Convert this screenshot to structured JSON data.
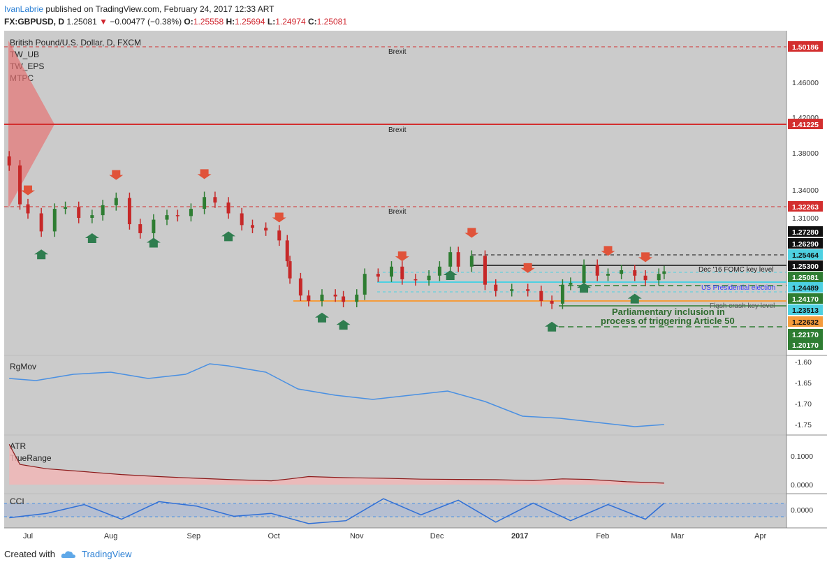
{
  "header": {
    "author": "IvanLabrie",
    "published_text": "published on TradingView.com, February 24, 2017 12:33 ART",
    "symbol_line": "FX:GBPUSD, D",
    "last": "1.25081",
    "change_arrow": "▼",
    "change": "−0.00477 (−0.38%)",
    "o_label": "O:",
    "o_value": "1.25558",
    "h_label": "H:",
    "h_value": "1.25694",
    "l_label": "L:",
    "l_value": "1.24974",
    "c_label": "C:",
    "c_value": "1.25081"
  },
  "main_pane": {
    "title": "British Pound/U.S. Dollar, D, FXCM",
    "indicators": [
      "TW_UB",
      "TW_EPS",
      "MTPC"
    ]
  },
  "footer": {
    "created_with": "Created with",
    "brand": "TradingView"
  },
  "colors": {
    "pane_bg": "#cbcbcb",
    "up": "#2e7d32",
    "down": "#c62828",
    "support_arrow": "#2f7d4f",
    "resistance_arrow": "#e0533a",
    "brexit_line": "#d32f2f",
    "cyan_line": "#4dd0e1",
    "orange_line": "#f59c3c",
    "indicator_line": "#4a90e2",
    "atr_line": "#8b1a1a"
  },
  "chart_data": [
    {
      "type": "line",
      "title": "British Pound/U.S. Dollar, D, FXCM",
      "x_ticks": [
        "Jul",
        "Aug",
        "Sep",
        "Oct",
        "Nov",
        "Dec",
        "2017",
        "Feb",
        "Mar",
        "Apr"
      ],
      "y_ticks": [
        "1.46000",
        "1.42000",
        "1.38000",
        "1.34000",
        "1.31000"
      ],
      "y_range": [
        1.193,
        1.508
      ],
      "series": [
        {
          "name": "GBPUSD close (approx.)",
          "x": [
            "2016-06-24",
            "2016-06-28",
            "2016-07-01",
            "2016-07-06",
            "2016-07-11",
            "2016-07-15",
            "2016-07-20",
            "2016-07-25",
            "2016-07-29",
            "2016-08-03",
            "2016-08-08",
            "2016-08-12",
            "2016-08-17",
            "2016-08-22",
            "2016-08-26",
            "2016-08-31",
            "2016-09-05",
            "2016-09-09",
            "2016-09-14",
            "2016-09-19",
            "2016-09-23",
            "2016-09-28",
            "2016-10-03",
            "2016-10-06",
            "2016-10-07",
            "2016-10-11",
            "2016-10-14",
            "2016-10-19",
            "2016-10-24",
            "2016-10-27",
            "2016-11-01",
            "2016-11-04",
            "2016-11-09",
            "2016-11-14",
            "2016-11-18",
            "2016-11-23",
            "2016-11-28",
            "2016-12-02",
            "2016-12-06",
            "2016-12-09",
            "2016-12-14",
            "2016-12-19",
            "2016-12-23",
            "2016-12-29",
            "2017-01-04",
            "2017-01-09",
            "2017-01-13",
            "2017-01-17",
            "2017-01-20",
            "2017-01-25",
            "2017-01-30",
            "2017-02-03",
            "2017-02-08",
            "2017-02-13",
            "2017-02-17",
            "2017-02-22",
            "2017-02-24"
          ],
          "values": [
            1.368,
            1.325,
            1.315,
            1.295,
            1.32,
            1.322,
            1.31,
            1.313,
            1.324,
            1.332,
            1.303,
            1.293,
            1.308,
            1.313,
            1.312,
            1.32,
            1.333,
            1.327,
            1.315,
            1.302,
            1.299,
            1.296,
            1.285,
            1.262,
            1.243,
            1.224,
            1.218,
            1.225,
            1.223,
            1.217,
            1.225,
            1.248,
            1.245,
            1.256,
            1.242,
            1.241,
            1.246,
            1.256,
            1.272,
            1.256,
            1.268,
            1.236,
            1.229,
            1.231,
            1.229,
            1.218,
            1.215,
            1.236,
            1.238,
            1.258,
            1.246,
            1.248,
            1.252,
            1.246,
            1.241,
            1.248,
            1.2508
          ]
        }
      ],
      "price_labels": [
        {
          "value": "1.50186",
          "kind": "brexit"
        },
        {
          "value": "1.41225",
          "kind": "brexit"
        },
        {
          "value": "1.32263",
          "kind": "brexit"
        },
        {
          "value": "1.27280",
          "kind": "black"
        },
        {
          "value": "1.26290",
          "kind": "black"
        },
        {
          "value": "1.25464",
          "kind": "cyan"
        },
        {
          "value": "1.25300",
          "kind": "black"
        },
        {
          "value": "1.25081",
          "kind": "green"
        },
        {
          "value": "1.24489",
          "kind": "cyan"
        },
        {
          "value": "1.24170",
          "kind": "green"
        },
        {
          "value": "1.23513",
          "kind": "cyan"
        },
        {
          "value": "1.22632",
          "kind": "orange"
        },
        {
          "value": "1.22170",
          "kind": "green"
        },
        {
          "value": "1.20170",
          "kind": "green"
        }
      ],
      "annotations": {
        "brexit_labels": [
          "Brexit",
          "Brexit",
          "Brexit"
        ],
        "fomc": "Dec '16 FOMC key level",
        "election": "US Presidential election",
        "flash_crash": "Flash crash key level",
        "article50_line1": "Parliamentary inclusion in",
        "article50_line2": "process of triggering Article 50"
      }
    },
    {
      "type": "line",
      "title": "RgMov",
      "y_ticks": [
        "-1.60",
        "-1.65",
        "-1.70",
        "-1.75"
      ],
      "y_range": [
        -1.77,
        -1.59
      ],
      "series": [
        {
          "name": "RgMov",
          "x": [
            "2016-06-24",
            "2016-07-04",
            "2016-07-18",
            "2016-08-01",
            "2016-08-15",
            "2016-08-29",
            "2016-09-07",
            "2016-09-14",
            "2016-09-28",
            "2016-10-10",
            "2016-10-24",
            "2016-11-07",
            "2016-11-21",
            "2016-12-05",
            "2016-12-19",
            "2017-01-02",
            "2017-01-16",
            "2017-01-30",
            "2017-02-13",
            "2017-02-24"
          ],
          "values": [
            -1.64,
            -1.645,
            -1.63,
            -1.625,
            -1.64,
            -1.63,
            -1.605,
            -1.61,
            -1.625,
            -1.665,
            -1.68,
            -1.69,
            -1.68,
            -1.67,
            -1.695,
            -1.73,
            -1.735,
            -1.745,
            -1.755,
            -1.75
          ]
        }
      ]
    },
    {
      "type": "area",
      "title": "ATR",
      "legend": [
        "TrueRange"
      ],
      "y_ticks": [
        "0.1000",
        "0.0000"
      ],
      "y_range": [
        0,
        0.16
      ],
      "series": [
        {
          "name": "ATR",
          "x": [
            "2016-06-24",
            "2016-06-28",
            "2016-07-08",
            "2016-07-22",
            "2016-08-05",
            "2016-08-19",
            "2016-09-02",
            "2016-09-16",
            "2016-09-30",
            "2016-10-07",
            "2016-10-14",
            "2016-10-28",
            "2016-11-11",
            "2016-11-25",
            "2016-12-09",
            "2016-12-23",
            "2017-01-06",
            "2017-01-17",
            "2017-01-27",
            "2017-02-10",
            "2017-02-24"
          ],
          "values": [
            0.14,
            0.07,
            0.055,
            0.045,
            0.035,
            0.028,
            0.022,
            0.017,
            0.013,
            0.02,
            0.028,
            0.024,
            0.022,
            0.019,
            0.018,
            0.017,
            0.014,
            0.02,
            0.018,
            0.01,
            0.005
          ]
        }
      ]
    },
    {
      "type": "line",
      "title": "CCI",
      "y_ticks": [
        "0.0000"
      ],
      "y_range": [
        -1,
        1
      ],
      "series": [
        {
          "name": "CCI",
          "x": [
            "2016-06-24",
            "2016-07-08",
            "2016-07-22",
            "2016-08-05",
            "2016-08-19",
            "2016-09-02",
            "2016-09-16",
            "2016-09-30",
            "2016-10-14",
            "2016-10-28",
            "2016-11-11",
            "2016-11-25",
            "2016-12-09",
            "2016-12-23",
            "2017-01-06",
            "2017-01-20",
            "2017-02-03",
            "2017-02-17",
            "2017-02-24"
          ],
          "values": [
            -0.5,
            -0.2,
            0.4,
            -0.6,
            0.6,
            0.3,
            -0.4,
            -0.2,
            -0.9,
            -0.7,
            0.8,
            -0.3,
            0.7,
            -0.8,
            0.5,
            -0.7,
            0.4,
            -0.6,
            0.5
          ]
        }
      ]
    }
  ]
}
